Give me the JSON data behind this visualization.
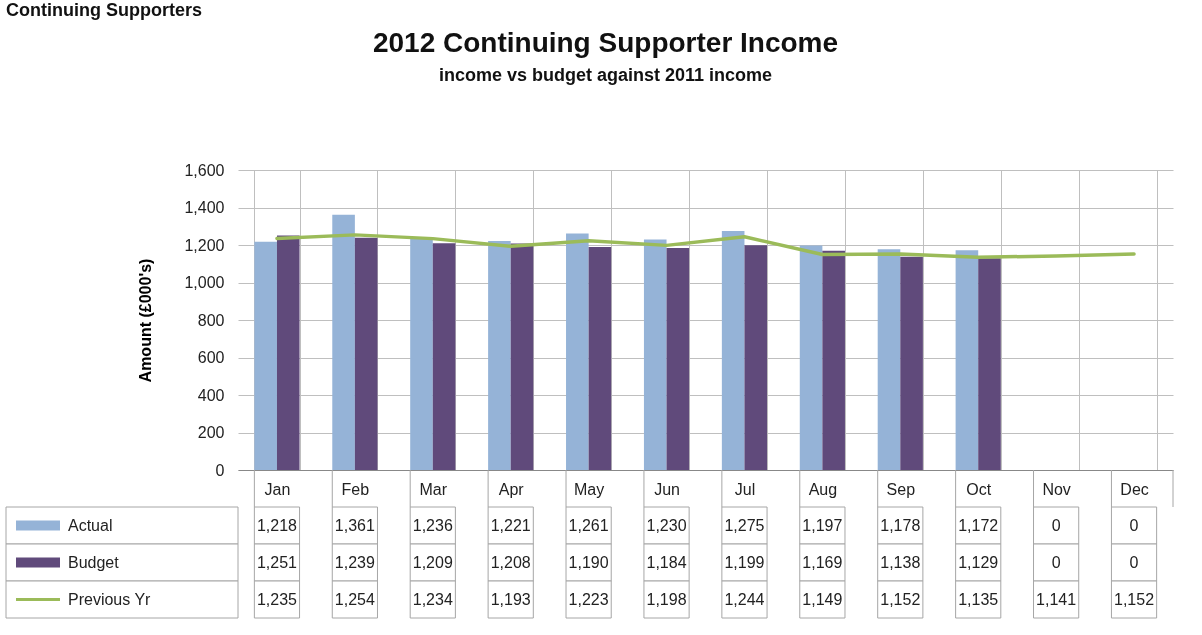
{
  "chart_data": {
    "type": "bar",
    "title": "2012 Continuing Supporter Income",
    "subtitle": "income vs budget against 2011 income",
    "ylabel": "Amount (£000's)",
    "annotations": [
      "Continuing Supporters"
    ],
    "categories": [
      "Jan",
      "Feb",
      "Mar",
      "Apr",
      "May",
      "Jun",
      "Jul",
      "Aug",
      "Sep",
      "Oct",
      "Nov",
      "Dec"
    ],
    "series": [
      {
        "name": "Actual",
        "color": "#95b3d7",
        "values": [
          1218,
          1361,
          1236,
          1221,
          1261,
          1230,
          1275,
          1197,
          1178,
          1172,
          0,
          0
        ],
        "value_labels": [
          "1,218",
          "1,361",
          "1,236",
          "1,221",
          "1,261",
          "1,230",
          "1,275",
          "1,197",
          "1,178",
          "1,172",
          "0",
          "0"
        ]
      },
      {
        "name": "Budget",
        "color": "#604a7b",
        "values": [
          1251,
          1239,
          1209,
          1208,
          1190,
          1184,
          1199,
          1169,
          1138,
          1129,
          0,
          0
        ],
        "value_labels": [
          "1,251",
          "1,239",
          "1,209",
          "1,208",
          "1,190",
          "1,184",
          "1,199",
          "1,169",
          "1,138",
          "1,129",
          "0",
          "0"
        ]
      },
      {
        "name": "Previous Yr",
        "type": "line",
        "color": "#9bbb59",
        "values": [
          1235,
          1254,
          1234,
          1193,
          1223,
          1198,
          1244,
          1149,
          1152,
          1135,
          1141,
          1152
        ],
        "value_labels": [
          "1,235",
          "1,254",
          "1,234",
          "1,193",
          "1,223",
          "1,198",
          "1,244",
          "1,149",
          "1,152",
          "1,135",
          "1,141",
          "1,152"
        ]
      }
    ],
    "ylim": [
      0,
      1600
    ],
    "yticks": [
      0,
      {
        "value": 200,
        "label": "200"
      },
      {
        "value": 400,
        "label": "400"
      },
      {
        "value": 600,
        "label": "600"
      },
      {
        "value": 800,
        "label": "800"
      },
      {
        "value": 1000,
        "label": "1,000"
      },
      {
        "value": 1200,
        "label": "1,200"
      },
      {
        "value": 1400,
        "label": "1,400"
      },
      {
        "value": 1600,
        "label": "1,600"
      }
    ],
    "grid": true,
    "legend": "bottom"
  }
}
